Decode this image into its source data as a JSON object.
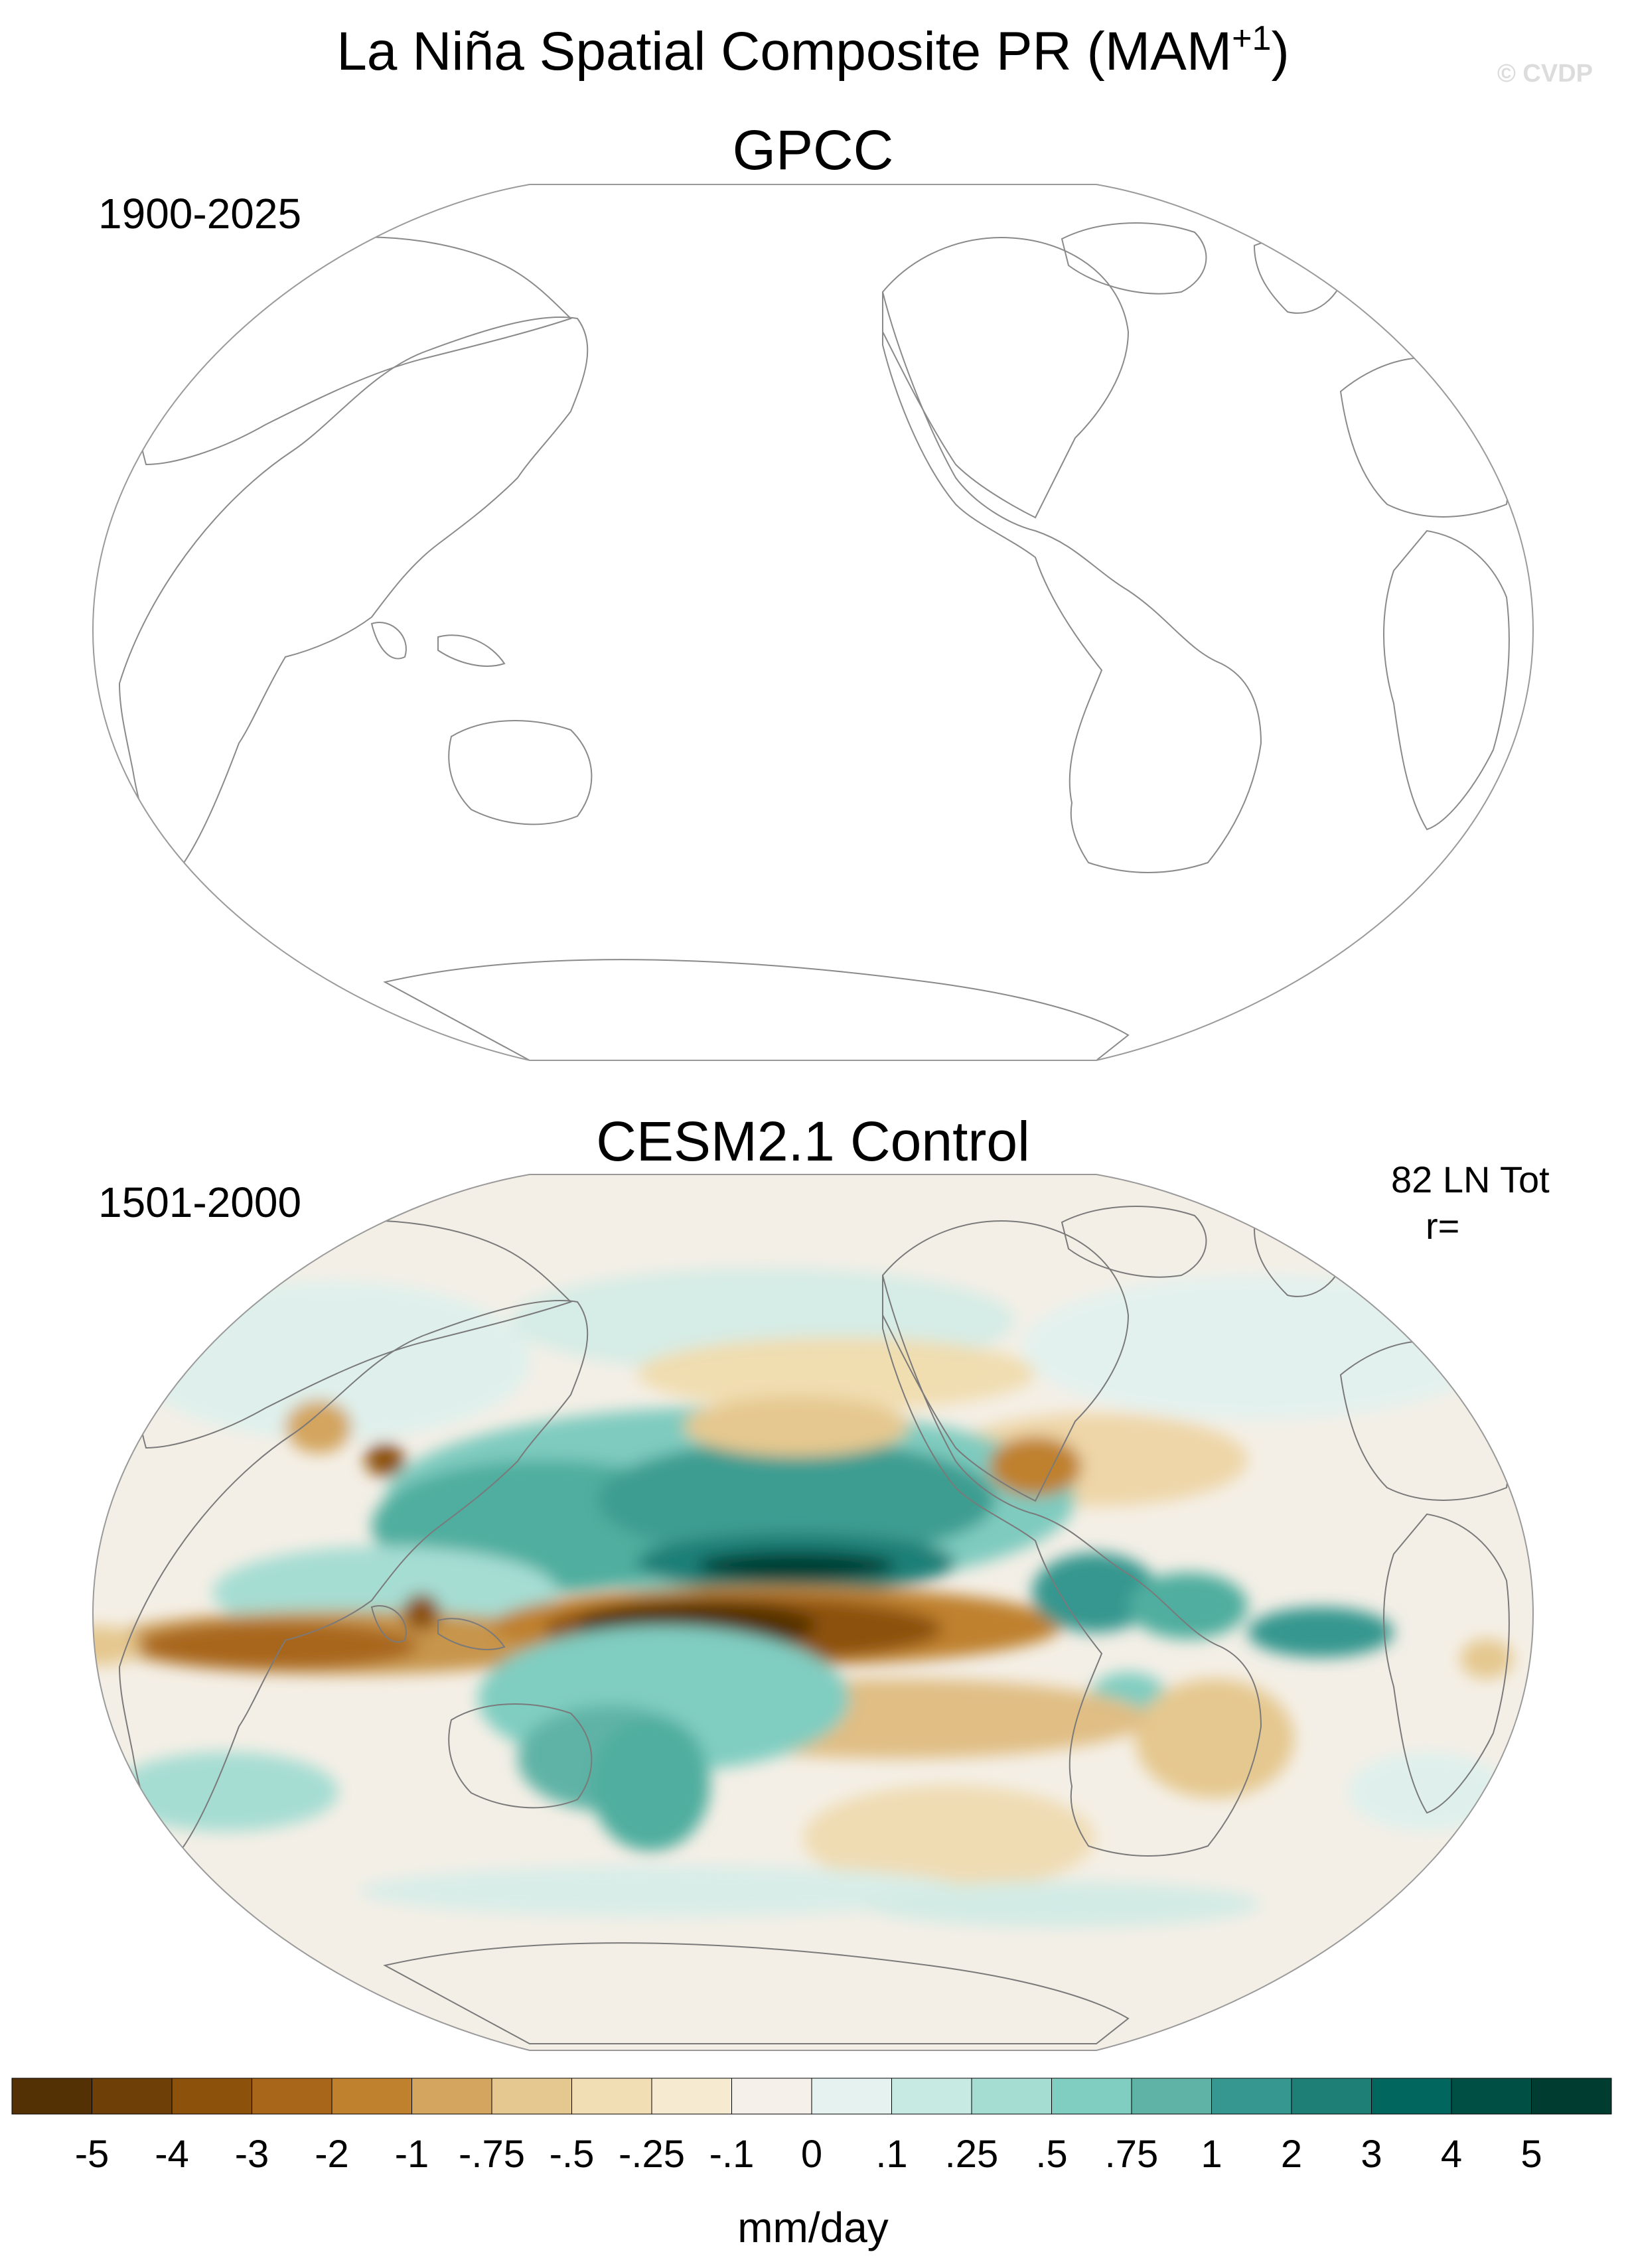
{
  "title_main": "La Niña Spatial Composite PR (MAM",
  "title_superscript": "+1",
  "title_close": ")",
  "watermark": "© CVDP",
  "panels": [
    {
      "title": "GPCC",
      "period": "1900-2025",
      "stat_count": "",
      "stat_r": "",
      "data_shown": false
    },
    {
      "title": "CESM2.1 Control",
      "period": "1501-2000",
      "stat_count": "82 LN Tot",
      "stat_r": "r=",
      "data_shown": true
    }
  ],
  "colorbar": {
    "unit": "mm/day",
    "tick_labels": [
      "-5",
      "-4",
      "-3",
      "-2",
      "-1",
      "-.75",
      "-.5",
      "-.25",
      "-.1",
      "0",
      ".1",
      ".25",
      ".5",
      ".75",
      "1",
      "2",
      "3",
      "4",
      "5"
    ],
    "colors": [
      "#543005",
      "#6f3f08",
      "#8c510a",
      "#a8661a",
      "#bf812d",
      "#d3a55f",
      "#e5c88f",
      "#f2deb4",
      "#f6ead0",
      "#f5f1ea",
      "#e6f2ef",
      "#c7eae3",
      "#a6ddd3",
      "#80cdc1",
      "#5fb3a6",
      "#35978f",
      "#1e7f77",
      "#01665e",
      "#004f45",
      "#003c30"
    ]
  },
  "map_colors": {
    "coast": "#8a8a8a",
    "frame": "#9a9a9a"
  }
}
